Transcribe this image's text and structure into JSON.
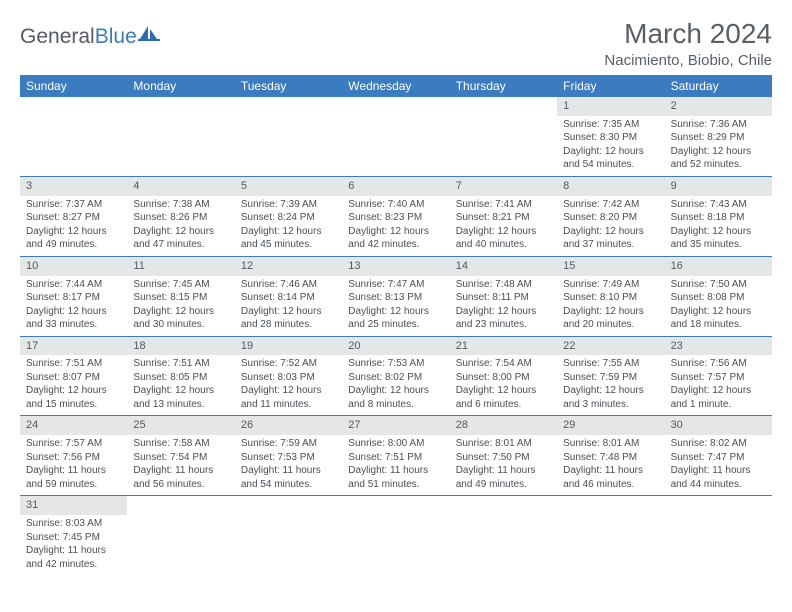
{
  "logo": {
    "text_a": "General",
    "text_b": "Blue"
  },
  "title": "March 2024",
  "location": "Nacimiento, Biobio, Chile",
  "colors": {
    "header_bg": "#3b7bbf",
    "daynum_bg": "#e4e6e8",
    "text": "#4a4f54",
    "border": "#3b7bbf"
  },
  "fonts": {
    "title_size": 28,
    "location_size": 15,
    "weekday_size": 12,
    "cell_size": 10
  },
  "weekdays": [
    "Sunday",
    "Monday",
    "Tuesday",
    "Wednesday",
    "Thursday",
    "Friday",
    "Saturday"
  ],
  "weeks": [
    [
      {
        "empty": true
      },
      {
        "empty": true
      },
      {
        "empty": true
      },
      {
        "empty": true
      },
      {
        "empty": true
      },
      {
        "n": "1",
        "sr": "Sunrise: 7:35 AM",
        "ss": "Sunset: 8:30 PM",
        "d1": "Daylight: 12 hours",
        "d2": "and 54 minutes."
      },
      {
        "n": "2",
        "sr": "Sunrise: 7:36 AM",
        "ss": "Sunset: 8:29 PM",
        "d1": "Daylight: 12 hours",
        "d2": "and 52 minutes."
      }
    ],
    [
      {
        "n": "3",
        "sr": "Sunrise: 7:37 AM",
        "ss": "Sunset: 8:27 PM",
        "d1": "Daylight: 12 hours",
        "d2": "and 49 minutes."
      },
      {
        "n": "4",
        "sr": "Sunrise: 7:38 AM",
        "ss": "Sunset: 8:26 PM",
        "d1": "Daylight: 12 hours",
        "d2": "and 47 minutes."
      },
      {
        "n": "5",
        "sr": "Sunrise: 7:39 AM",
        "ss": "Sunset: 8:24 PM",
        "d1": "Daylight: 12 hours",
        "d2": "and 45 minutes."
      },
      {
        "n": "6",
        "sr": "Sunrise: 7:40 AM",
        "ss": "Sunset: 8:23 PM",
        "d1": "Daylight: 12 hours",
        "d2": "and 42 minutes."
      },
      {
        "n": "7",
        "sr": "Sunrise: 7:41 AM",
        "ss": "Sunset: 8:21 PM",
        "d1": "Daylight: 12 hours",
        "d2": "and 40 minutes."
      },
      {
        "n": "8",
        "sr": "Sunrise: 7:42 AM",
        "ss": "Sunset: 8:20 PM",
        "d1": "Daylight: 12 hours",
        "d2": "and 37 minutes."
      },
      {
        "n": "9",
        "sr": "Sunrise: 7:43 AM",
        "ss": "Sunset: 8:18 PM",
        "d1": "Daylight: 12 hours",
        "d2": "and 35 minutes."
      }
    ],
    [
      {
        "n": "10",
        "sr": "Sunrise: 7:44 AM",
        "ss": "Sunset: 8:17 PM",
        "d1": "Daylight: 12 hours",
        "d2": "and 33 minutes."
      },
      {
        "n": "11",
        "sr": "Sunrise: 7:45 AM",
        "ss": "Sunset: 8:15 PM",
        "d1": "Daylight: 12 hours",
        "d2": "and 30 minutes."
      },
      {
        "n": "12",
        "sr": "Sunrise: 7:46 AM",
        "ss": "Sunset: 8:14 PM",
        "d1": "Daylight: 12 hours",
        "d2": "and 28 minutes."
      },
      {
        "n": "13",
        "sr": "Sunrise: 7:47 AM",
        "ss": "Sunset: 8:13 PM",
        "d1": "Daylight: 12 hours",
        "d2": "and 25 minutes."
      },
      {
        "n": "14",
        "sr": "Sunrise: 7:48 AM",
        "ss": "Sunset: 8:11 PM",
        "d1": "Daylight: 12 hours",
        "d2": "and 23 minutes."
      },
      {
        "n": "15",
        "sr": "Sunrise: 7:49 AM",
        "ss": "Sunset: 8:10 PM",
        "d1": "Daylight: 12 hours",
        "d2": "and 20 minutes."
      },
      {
        "n": "16",
        "sr": "Sunrise: 7:50 AM",
        "ss": "Sunset: 8:08 PM",
        "d1": "Daylight: 12 hours",
        "d2": "and 18 minutes."
      }
    ],
    [
      {
        "n": "17",
        "sr": "Sunrise: 7:51 AM",
        "ss": "Sunset: 8:07 PM",
        "d1": "Daylight: 12 hours",
        "d2": "and 15 minutes."
      },
      {
        "n": "18",
        "sr": "Sunrise: 7:51 AM",
        "ss": "Sunset: 8:05 PM",
        "d1": "Daylight: 12 hours",
        "d2": "and 13 minutes."
      },
      {
        "n": "19",
        "sr": "Sunrise: 7:52 AM",
        "ss": "Sunset: 8:03 PM",
        "d1": "Daylight: 12 hours",
        "d2": "and 11 minutes."
      },
      {
        "n": "20",
        "sr": "Sunrise: 7:53 AM",
        "ss": "Sunset: 8:02 PM",
        "d1": "Daylight: 12 hours",
        "d2": "and 8 minutes."
      },
      {
        "n": "21",
        "sr": "Sunrise: 7:54 AM",
        "ss": "Sunset: 8:00 PM",
        "d1": "Daylight: 12 hours",
        "d2": "and 6 minutes."
      },
      {
        "n": "22",
        "sr": "Sunrise: 7:55 AM",
        "ss": "Sunset: 7:59 PM",
        "d1": "Daylight: 12 hours",
        "d2": "and 3 minutes."
      },
      {
        "n": "23",
        "sr": "Sunrise: 7:56 AM",
        "ss": "Sunset: 7:57 PM",
        "d1": "Daylight: 12 hours",
        "d2": "and 1 minute."
      }
    ],
    [
      {
        "n": "24",
        "sr": "Sunrise: 7:57 AM",
        "ss": "Sunset: 7:56 PM",
        "d1": "Daylight: 11 hours",
        "d2": "and 59 minutes."
      },
      {
        "n": "25",
        "sr": "Sunrise: 7:58 AM",
        "ss": "Sunset: 7:54 PM",
        "d1": "Daylight: 11 hours",
        "d2": "and 56 minutes."
      },
      {
        "n": "26",
        "sr": "Sunrise: 7:59 AM",
        "ss": "Sunset: 7:53 PM",
        "d1": "Daylight: 11 hours",
        "d2": "and 54 minutes."
      },
      {
        "n": "27",
        "sr": "Sunrise: 8:00 AM",
        "ss": "Sunset: 7:51 PM",
        "d1": "Daylight: 11 hours",
        "d2": "and 51 minutes."
      },
      {
        "n": "28",
        "sr": "Sunrise: 8:01 AM",
        "ss": "Sunset: 7:50 PM",
        "d1": "Daylight: 11 hours",
        "d2": "and 49 minutes."
      },
      {
        "n": "29",
        "sr": "Sunrise: 8:01 AM",
        "ss": "Sunset: 7:48 PM",
        "d1": "Daylight: 11 hours",
        "d2": "and 46 minutes."
      },
      {
        "n": "30",
        "sr": "Sunrise: 8:02 AM",
        "ss": "Sunset: 7:47 PM",
        "d1": "Daylight: 11 hours",
        "d2": "and 44 minutes."
      }
    ],
    [
      {
        "n": "31",
        "sr": "Sunrise: 8:03 AM",
        "ss": "Sunset: 7:45 PM",
        "d1": "Daylight: 11 hours",
        "d2": "and 42 minutes."
      },
      {
        "empty": true
      },
      {
        "empty": true
      },
      {
        "empty": true
      },
      {
        "empty": true
      },
      {
        "empty": true
      },
      {
        "empty": true
      }
    ]
  ]
}
